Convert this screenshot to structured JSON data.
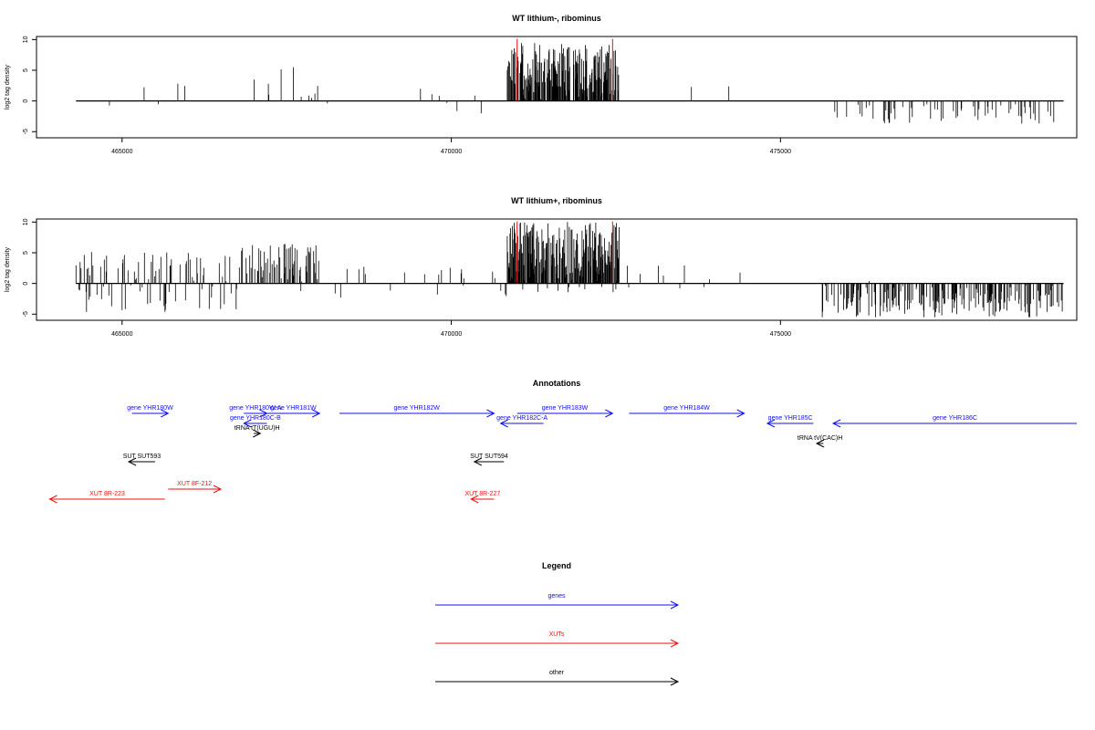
{
  "chart_data": [
    {
      "type": "bar",
      "title": "WT lithium-, ribominus",
      "ylabel": "log2 tag density",
      "xlabel": "",
      "xlim": [
        463700,
        479500
      ],
      "ylim": [
        -6,
        10.5
      ],
      "yticks": [
        -5,
        0,
        5,
        10
      ],
      "xticks": [
        465000,
        470000,
        475000
      ],
      "highlight_lines": [
        471000,
        472450
      ],
      "regions": [
        {
          "start": 464400,
          "end": 464600,
          "density": 0.04,
          "max": 3,
          "min": -2.5,
          "dir": "mixed"
        },
        {
          "start": 464600,
          "end": 467000,
          "density": 0.015,
          "max": 3,
          "min": -1,
          "dir": "mixed"
        },
        {
          "start": 467000,
          "end": 468000,
          "density": 0.09,
          "max": 5.5,
          "min": -0.5,
          "dir": "pos"
        },
        {
          "start": 468000,
          "end": 470700,
          "density": 0.012,
          "max": 3,
          "min": -2.5,
          "dir": "mixed"
        },
        {
          "start": 470850,
          "end": 472550,
          "density": 0.8,
          "max": 9.5,
          "min": -0.3,
          "dir": "pos"
        },
        {
          "start": 473300,
          "end": 474600,
          "density": 0.012,
          "max": 2.5,
          "min": 0,
          "dir": "pos"
        },
        {
          "start": 475700,
          "end": 479300,
          "density": 0.12,
          "max": 0,
          "min": -3.8,
          "dir": "neg"
        }
      ],
      "seed": 7
    },
    {
      "type": "bar",
      "title": "WT lithium+, ribominus",
      "ylabel": "log2 tag density",
      "xlabel": "",
      "xlim": [
        463700,
        479500
      ],
      "ylim": [
        -6,
        10.5
      ],
      "yticks": [
        -5,
        0,
        5,
        10
      ],
      "xticks": [
        465000,
        470000,
        475000
      ],
      "highlight_lines": [
        471000,
        472450
      ],
      "regions": [
        {
          "start": 464300,
          "end": 466800,
          "density": 0.25,
          "max": 5.5,
          "min": -5,
          "dir": "mixed"
        },
        {
          "start": 466800,
          "end": 468000,
          "density": 0.35,
          "max": 6.5,
          "min": -1.5,
          "dir": "pos"
        },
        {
          "start": 468000,
          "end": 470850,
          "density": 0.06,
          "max": 3,
          "min": -2.5,
          "dir": "mixed"
        },
        {
          "start": 470850,
          "end": 472550,
          "density": 0.8,
          "max": 10,
          "min": -1.5,
          "dir": "pos"
        },
        {
          "start": 472550,
          "end": 474600,
          "density": 0.04,
          "max": 3.5,
          "min": -1,
          "dir": "mixed"
        },
        {
          "start": 475600,
          "end": 479300,
          "density": 0.35,
          "max": 0.5,
          "min": -5.5,
          "dir": "neg"
        }
      ],
      "seed": 23
    }
  ],
  "annotations": {
    "title": "Annotations",
    "xlim": [
      463700,
      479500
    ],
    "features": [
      {
        "label": "gene YHR180W",
        "start": 465150,
        "end": 465700,
        "dir": "right",
        "row": 0,
        "color": "#1010ee"
      },
      {
        "label": "gene YHR180W-A",
        "start": 466850,
        "end": 467200,
        "dir": "right",
        "row": 0,
        "color": "#1010ee"
      },
      {
        "label": "gene YHR181W",
        "start": 467200,
        "end": 468000,
        "dir": "right",
        "row": 0,
        "color": "#1010ee"
      },
      {
        "label": "gene YHR182W",
        "start": 468300,
        "end": 470650,
        "dir": "right",
        "row": 0,
        "color": "#1010ee"
      },
      {
        "label": "gene YHR183W",
        "start": 471000,
        "end": 472450,
        "dir": "right",
        "row": 0,
        "color": "#1010ee"
      },
      {
        "label": "gene YHR184W",
        "start": 472700,
        "end": 474450,
        "dir": "right",
        "row": 0,
        "color": "#1010ee"
      },
      {
        "label": "gene YHR180C-B",
        "start": 466850,
        "end": 467200,
        "dir": "left",
        "row": 1,
        "color": "#1010ee"
      },
      {
        "label": "gene YHR182C-A",
        "start": 470750,
        "end": 471400,
        "dir": "left",
        "row": 1,
        "color": "#1010ee"
      },
      {
        "label": "gene YHR185C",
        "start": 474800,
        "end": 475500,
        "dir": "left",
        "row": 1,
        "color": "#1010ee"
      },
      {
        "label": "gene YHR186C",
        "start": 475800,
        "end": 479500,
        "dir": "left",
        "row": 1,
        "color": "#1010ee"
      },
      {
        "label": "tRNA tT(UGU)H",
        "start": 467000,
        "end": 467100,
        "dir": "right",
        "row": 2,
        "color": "#000000"
      },
      {
        "label": "tRNA tV(CAC)H",
        "start": 475550,
        "end": 475650,
        "dir": "left",
        "row": 3,
        "color": "#000000"
      },
      {
        "label": "SUT SUT593",
        "start": 465100,
        "end": 465500,
        "dir": "left",
        "row": 4,
        "color": "#000000"
      },
      {
        "label": "SUT SUT594",
        "start": 470350,
        "end": 470800,
        "dir": "left",
        "row": 4,
        "color": "#000000"
      },
      {
        "label": "XUT 8F-212",
        "start": 465700,
        "end": 466500,
        "dir": "right",
        "row": 5,
        "color": "#ee1010"
      },
      {
        "label": "XUT 8R-223",
        "start": 463900,
        "end": 465650,
        "dir": "left",
        "row": 6,
        "color": "#ee1010"
      },
      {
        "label": "XUT 8R-227",
        "start": 470300,
        "end": 470650,
        "dir": "left",
        "row": 6,
        "color": "#ee1010"
      }
    ]
  },
  "legend": {
    "title": "Legend",
    "items": [
      {
        "label": "genes",
        "color": "#1010ee"
      },
      {
        "label": "XUTs",
        "color": "#ee1010"
      },
      {
        "label": "other",
        "color": "#000000"
      }
    ]
  }
}
